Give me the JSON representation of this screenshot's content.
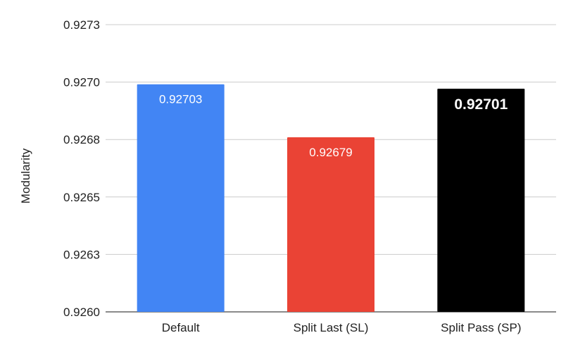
{
  "chart_data": {
    "type": "bar",
    "title": "",
    "xlabel": "",
    "ylabel": "Modularity",
    "ylim": [
      0.926,
      0.9273
    ],
    "yticks": [
      "0.9260",
      "0.9263",
      "0.9265",
      "0.9268",
      "0.9270",
      "0.9273"
    ],
    "ytick_values": [
      0.926,
      0.92626,
      0.92652,
      0.92678,
      0.92704,
      0.9273
    ],
    "grid": true,
    "categories": [
      "Default",
      "Split Last (SL)",
      "Split Pass (SP)"
    ],
    "values": [
      0.92703,
      0.92679,
      0.92701
    ],
    "data_labels": [
      "0.92703",
      "0.92679",
      "0.92701"
    ],
    "colors": [
      "#4285f4",
      "#ea4335",
      "#000000"
    ],
    "label_bold": [
      false,
      false,
      true
    ]
  }
}
